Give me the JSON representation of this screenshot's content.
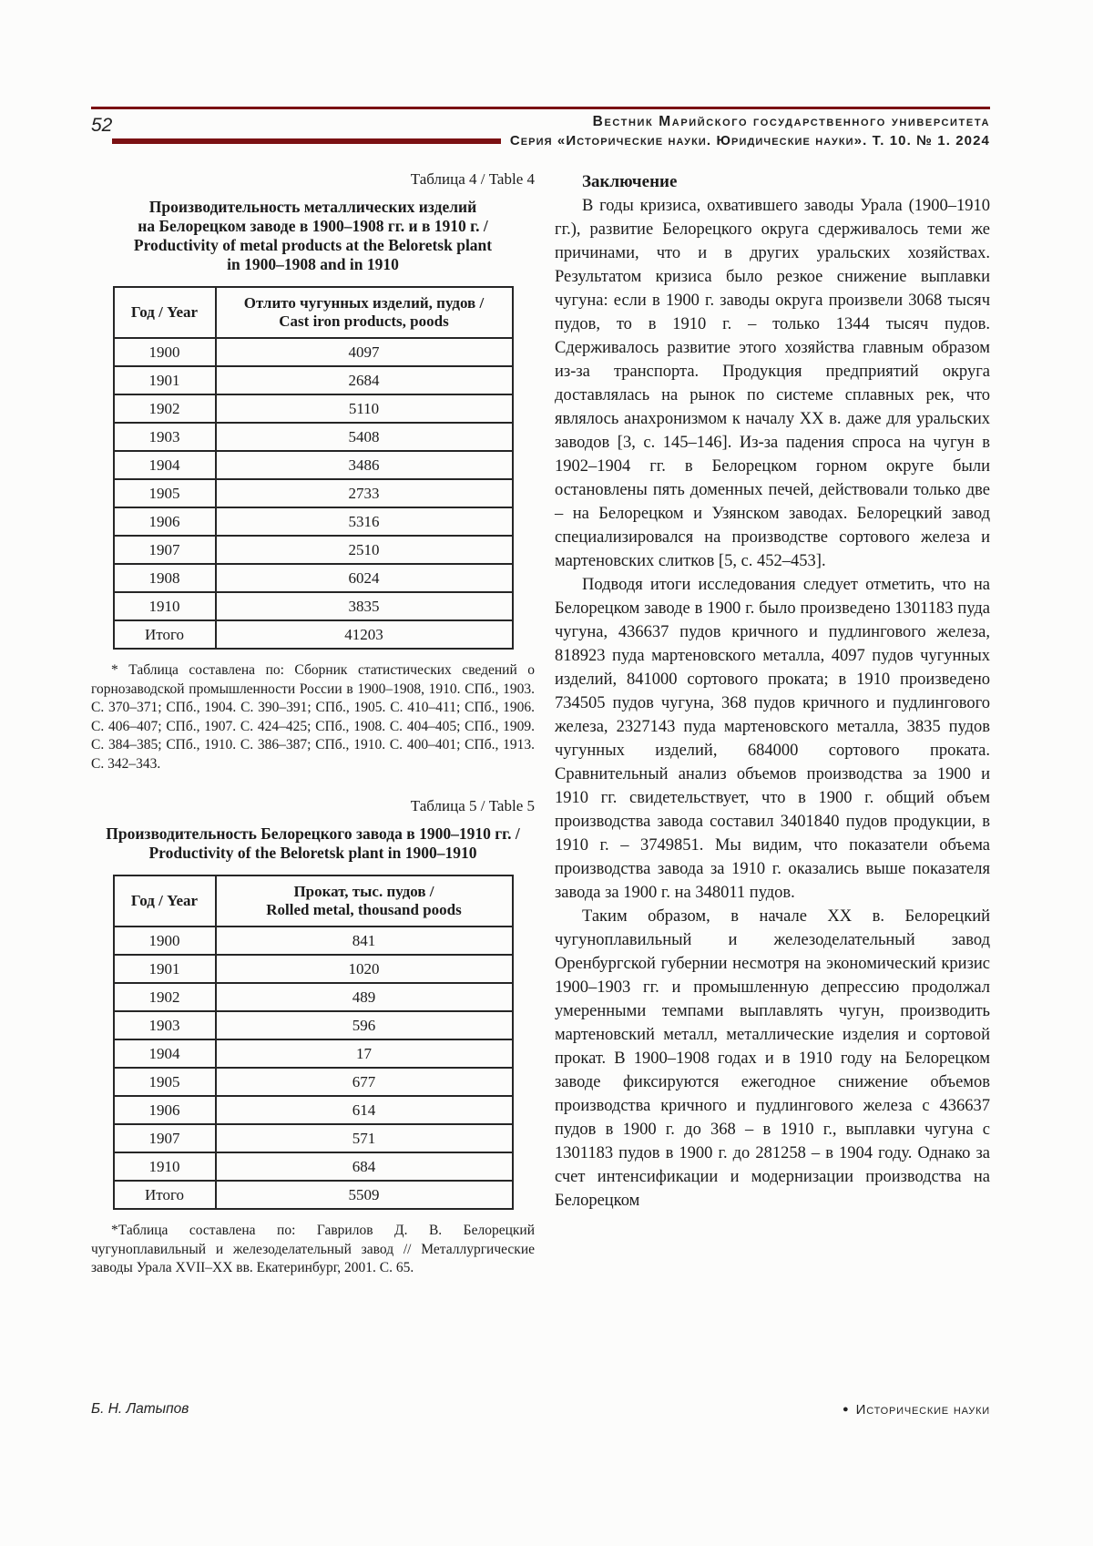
{
  "page": {
    "number": "52",
    "header": {
      "journal_line1": "Вестник Марийского государственного университета",
      "journal_line2": "Серия «Исторические науки. Юридические науки». Т. 10. № 1. 2024"
    },
    "footer": {
      "author": "Б. Н. Латыпов",
      "bullet": "●",
      "section": "Исторические науки"
    }
  },
  "table4": {
    "caption": "Таблица 4 / Table 4",
    "title_lines": [
      "Производительность металлических изделий",
      "на Белорецком заводе в 1900–1908 гг. и в 1910 г. /",
      "Productivity of metal products at the Beloretsk plant",
      "in 1900–1908 and in 1910"
    ],
    "col1_header": "Год / Year",
    "col2_header_lines": [
      "Отлито чугунных изделий, пудов /",
      "Cast iron products, poods"
    ],
    "rows": [
      {
        "year": "1900",
        "value": "4097"
      },
      {
        "year": "1901",
        "value": "2684"
      },
      {
        "year": "1902",
        "value": "5110"
      },
      {
        "year": "1903",
        "value": "5408"
      },
      {
        "year": "1904",
        "value": "3486"
      },
      {
        "year": "1905",
        "value": "2733"
      },
      {
        "year": "1906",
        "value": "5316"
      },
      {
        "year": "1907",
        "value": "2510"
      },
      {
        "year": "1908",
        "value": "6024"
      },
      {
        "year": "1910",
        "value": "3835"
      },
      {
        "year": "Итого",
        "value": "41203"
      }
    ],
    "footnote": "* Таблица составлена по: Сборник статистических сведений о горнозаводской промышленности России в 1900–1908, 1910. СПб., 1903. С. 370–371; СПб., 1904. С. 390–391; СПб., 1905. С. 410–411; СПб., 1906. С. 406–407; СПб., 1907. С. 424–425; СПб., 1908. С. 404–405; СПб., 1909. С. 384–385; СПб., 1910. С. 386–387; СПб., 1910. С. 400–401; СПб., 1913. С. 342–343."
  },
  "table5": {
    "caption": "Таблица 5 / Table 5",
    "title_lines": [
      "Производительность Белорецкого завода в 1900–1910 гг. /",
      "Productivity of the Beloretsk plant in 1900–1910"
    ],
    "col1_header": "Год / Year",
    "col2_header_lines": [
      "Прокат, тыс. пудов /",
      "Rolled metal, thousand poods"
    ],
    "rows": [
      {
        "year": "1900",
        "value": "841"
      },
      {
        "year": "1901",
        "value": "1020"
      },
      {
        "year": "1902",
        "value": "489"
      },
      {
        "year": "1903",
        "value": "596"
      },
      {
        "year": "1904",
        "value": "17"
      },
      {
        "year": "1905",
        "value": "677"
      },
      {
        "year": "1906",
        "value": "614"
      },
      {
        "year": "1907",
        "value": "571"
      },
      {
        "year": "1910",
        "value": "684"
      },
      {
        "year": "Итого",
        "value": "5509"
      }
    ],
    "footnote": "*Таблица составлена по: Гаврилов Д. В. Белорецкий чугуноплавильный и железоделательный завод // Металлургические заводы Урала XVII–XX вв. Екатеринбург, 2001. С. 65."
  },
  "article": {
    "conclusion_heading": "Заключение",
    "paragraphs": [
      "В годы кризиса, охватившего заводы Урала (1900–1910 гг.), развитие Белорецкого округа сдерживалось теми же причинами, что и в других уральских хозяйствах. Результатом кризиса было резкое снижение выплавки чугуна: если в 1900 г. заводы округа произвели 3068 тысяч пудов, то в 1910 г. – только 1344 тысяч пудов. Сдерживалось развитие этого хозяйства главным образом из-за транспорта. Продукция предприятий округа доставлялась на рынок по системе сплавных рек, что являлось анахронизмом к началу XX в. даже для уральских заводов [3, с. 145–146]. Из-за падения спроса на чугун в 1902–1904 гг. в Белорецком горном округе были остановлены пять доменных печей, действовали только две – на Белорецком и Узянском заводах. Белорецкий завод специализировался на производстве сортового железа и мартеновских слитков [5, с. 452–453].",
      "Подводя итоги исследования следует отметить, что на Белорецком заводе в 1900 г. было произведено 1301183 пуда чугуна, 436637 пудов кричного и пудлингового железа, 818923 пуда мартеновского металла, 4097 пудов чугунных изделий, 841000 сортового проката; в 1910 произведено 734505 пудов чугуна, 368 пудов кричного и пудлингового железа, 2327143 пуда мартеновского металла, 3835 пудов чугунных изделий, 684000 сортового проката. Сравнительный анализ объемов производства за 1900 и 1910 гг. свидетельствует, что в 1900 г. общий объем производства завода составил 3401840 пудов продукции, в 1910 г. – 3749851. Мы видим, что показатели объема производства завода за 1910 г. оказались выше показателя завода за 1900 г. на 348011 пудов.",
      "Таким образом, в начале XX в. Белорецкий чугуноплавильный и железоделательный завод Оренбургской губернии несмотря на экономический кризис 1900–1903 гг. и промышленную депрессию продолжал умеренными темпами выплавлять чугун, производить мартеновский металл, металлические изделия и сортовой прокат. В 1900–1908 годах и в 1910 году на Белорецком заводе фиксируются ежегодное снижение объемов производства кричного и пудлингового железа с 436637 пудов в 1900 г. до 368 – в 1910 г., выплавки чугуна с 1301183 пудов в 1900 г. до 281258 – в 1904 году. Однако за счет интенсификации и модернизации производства на Белорецком"
    ]
  }
}
